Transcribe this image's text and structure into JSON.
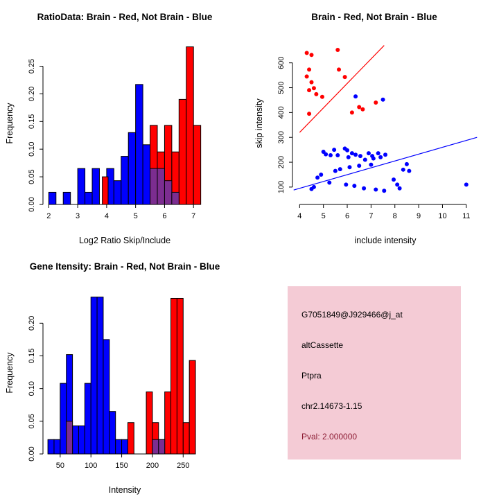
{
  "window": {
    "bg_color": "#ffffff"
  },
  "colors": {
    "brain": "#ff0000",
    "not_brain": "#0000ff",
    "overlap": "#7c2d90",
    "pval_text": "#8b1a32",
    "info_bg": "#f4cbd5"
  },
  "chart_data": [
    {
      "id": "ratio_hist",
      "type": "bar",
      "title": "RatioData: Brain - Red, Not Brain - Blue",
      "xlabel": "Log2 Ratio Skip/Include",
      "ylabel": "Frequency",
      "xlim": [
        1.8,
        7.45
      ],
      "ylim": [
        0,
        0.292
      ],
      "xticks": [
        2,
        3,
        4,
        5,
        6,
        7
      ],
      "yticks": [
        0,
        0.05,
        0.1,
        0.15,
        0.2,
        0.25
      ],
      "xtick_decimals": 0,
      "ytick_decimals": 2,
      "bin_width": 0.25,
      "grid": false,
      "legend": "none",
      "series": [
        {
          "name": "Not Brain (blue)",
          "color": "#0000ff",
          "bars": [
            [
              2.0,
              0.022
            ],
            [
              2.5,
              0.022
            ],
            [
              3.0,
              0.065
            ],
            [
              3.25,
              0.022
            ],
            [
              3.5,
              0.065
            ],
            [
              4.0,
              0.065
            ],
            [
              4.25,
              0.043
            ],
            [
              4.5,
              0.087
            ],
            [
              4.75,
              0.13
            ],
            [
              5.0,
              0.217
            ],
            [
              5.25,
              0.108
            ],
            [
              5.5,
              0.108
            ],
            [
              5.75,
              0.065
            ],
            [
              6.0,
              0.043
            ],
            [
              6.25,
              0.022
            ]
          ]
        },
        {
          "name": "Brain (red)",
          "color": "#ff0000",
          "bars": [
            [
              3.85,
              0.05,
              0.2
            ],
            [
              5.5,
              0.143
            ],
            [
              5.75,
              0.095
            ],
            [
              6.0,
              0.143
            ],
            [
              6.25,
              0.095
            ],
            [
              6.5,
              0.19
            ],
            [
              6.75,
              0.285
            ],
            [
              7.0,
              0.143
            ]
          ]
        },
        {
          "name": "Overlap (purple)",
          "color": "#7c2d90",
          "bars": [
            [
              5.5,
              0.065
            ],
            [
              5.75,
              0.065
            ],
            [
              6.0,
              0.043
            ],
            [
              6.25,
              0.022
            ]
          ]
        }
      ]
    },
    {
      "id": "scatter",
      "type": "scatter",
      "title": "Brain - Red, Not Brain - Blue",
      "xlabel": "include intensity",
      "ylabel": "skip intensity",
      "xlim": [
        3.7,
        11.5
      ],
      "ylim": [
        30,
        680
      ],
      "xticks": [
        4,
        5,
        6,
        7,
        8,
        9,
        10,
        11
      ],
      "yticks": [
        100,
        200,
        300,
        400,
        500,
        600
      ],
      "xtick_decimals": 0,
      "ytick_decimals": 0,
      "grid": false,
      "legend": "none",
      "series": [
        {
          "name": "Brain (red)",
          "color": "#ff0000",
          "points": [
            [
              4.3,
              640
            ],
            [
              4.5,
              632
            ],
            [
              4.4,
              573
            ],
            [
              4.3,
              545
            ],
            [
              4.5,
              522
            ],
            [
              4.6,
              498
            ],
            [
              4.4,
              490
            ],
            [
              4.7,
              474
            ],
            [
              4.95,
              463
            ],
            [
              4.4,
              395
            ],
            [
              5.6,
              652
            ],
            [
              5.65,
              573
            ],
            [
              5.9,
              543
            ],
            [
              6.2,
              400
            ],
            [
              6.5,
              422
            ],
            [
              6.65,
              413
            ],
            [
              7.2,
              440
            ]
          ]
        },
        {
          "name": "Not Brain (blue)",
          "color": "#0000ff",
          "points": [
            [
              6.35,
              465
            ],
            [
              7.5,
              452
            ],
            [
              4.5,
              92
            ],
            [
              4.6,
              100
            ],
            [
              4.75,
              138
            ],
            [
              4.9,
              150
            ],
            [
              5.0,
              242
            ],
            [
              5.1,
              232
            ],
            [
              5.25,
              118
            ],
            [
              5.3,
              228
            ],
            [
              5.45,
              250
            ],
            [
              5.5,
              165
            ],
            [
              5.6,
              228
            ],
            [
              5.7,
              172
            ],
            [
              5.9,
              255
            ],
            [
              5.95,
              110
            ],
            [
              6.0,
              248
            ],
            [
              6.05,
              220
            ],
            [
              6.1,
              180
            ],
            [
              6.2,
              236
            ],
            [
              6.3,
              105
            ],
            [
              6.35,
              230
            ],
            [
              6.5,
              186
            ],
            [
              6.55,
              225
            ],
            [
              6.7,
              95
            ],
            [
              6.75,
              210
            ],
            [
              6.9,
              236
            ],
            [
              7.0,
              190
            ],
            [
              7.05,
              225
            ],
            [
              7.1,
              215
            ],
            [
              7.2,
              90
            ],
            [
              7.3,
              236
            ],
            [
              7.4,
              220
            ],
            [
              7.55,
              85
            ],
            [
              7.6,
              230
            ],
            [
              7.95,
              130
            ],
            [
              8.1,
              110
            ],
            [
              8.2,
              95
            ],
            [
              8.35,
              170
            ],
            [
              8.5,
              192
            ],
            [
              8.6,
              165
            ],
            [
              11.0,
              110
            ]
          ]
        }
      ],
      "lines": [
        {
          "name": "brain-fit-line",
          "color": "#ff0000",
          "x": [
            4.0,
            7.55
          ],
          "y": [
            320,
            670
          ]
        },
        {
          "name": "not-brain-fit-line",
          "color": "#0000ff",
          "x": [
            3.75,
            11.45
          ],
          "y": [
            88,
            300
          ]
        }
      ]
    },
    {
      "id": "gene_hist",
      "type": "bar",
      "title": "Gene Itensity: Brain - Red, Not Brain - Blue",
      "xlabel": "Intensity",
      "ylabel": "Frequency",
      "xlim": [
        22,
        288
      ],
      "ylim": [
        0,
        0.247
      ],
      "xticks": [
        50,
        100,
        150,
        200,
        250
      ],
      "yticks": [
        0,
        0.05,
        0.1,
        0.15,
        0.2
      ],
      "xtick_decimals": 0,
      "ytick_decimals": 2,
      "bin_width": 10,
      "grid": false,
      "legend": "none",
      "series": [
        {
          "name": "Not Brain (blue)",
          "color": "#0000ff",
          "bars": [
            [
              30,
              0.022
            ],
            [
              40,
              0.022
            ],
            [
              50,
              0.108
            ],
            [
              60,
              0.152
            ],
            [
              70,
              0.043
            ],
            [
              80,
              0.043
            ],
            [
              90,
              0.108
            ],
            [
              100,
              0.24
            ],
            [
              110,
              0.24
            ],
            [
              120,
              0.175
            ],
            [
              130,
              0.065
            ],
            [
              140,
              0.022
            ],
            [
              150,
              0.022
            ],
            [
              200,
              0.022
            ],
            [
              210,
              0.022
            ]
          ]
        },
        {
          "name": "Brain (red)",
          "color": "#ff0000",
          "bars": [
            [
              160,
              0.048
            ],
            [
              190,
              0.095
            ],
            [
              200,
              0.048
            ],
            [
              220,
              0.095
            ],
            [
              230,
              0.238
            ],
            [
              240,
              0.238
            ],
            [
              250,
              0.048
            ],
            [
              260,
              0.143
            ]
          ]
        },
        {
          "name": "Overlap (purple)",
          "color": "#7c2d90",
          "bars": [
            [
              60,
              0.05
            ],
            [
              200,
              0.022
            ],
            [
              210,
              0.022
            ]
          ]
        }
      ]
    }
  ],
  "info_panel": {
    "bg_color": "#f4cbd5",
    "lines": [
      {
        "text": "G7051849@J929466@j_at",
        "color": "#000000"
      },
      {
        "text": "altCassette",
        "color": "#000000"
      },
      {
        "text": "Ptpra",
        "color": "#000000"
      },
      {
        "text": "chr2.14673-1.15",
        "color": "#000000"
      },
      {
        "text": "Pval: 2.000000",
        "color": "#8b1a32"
      }
    ]
  }
}
